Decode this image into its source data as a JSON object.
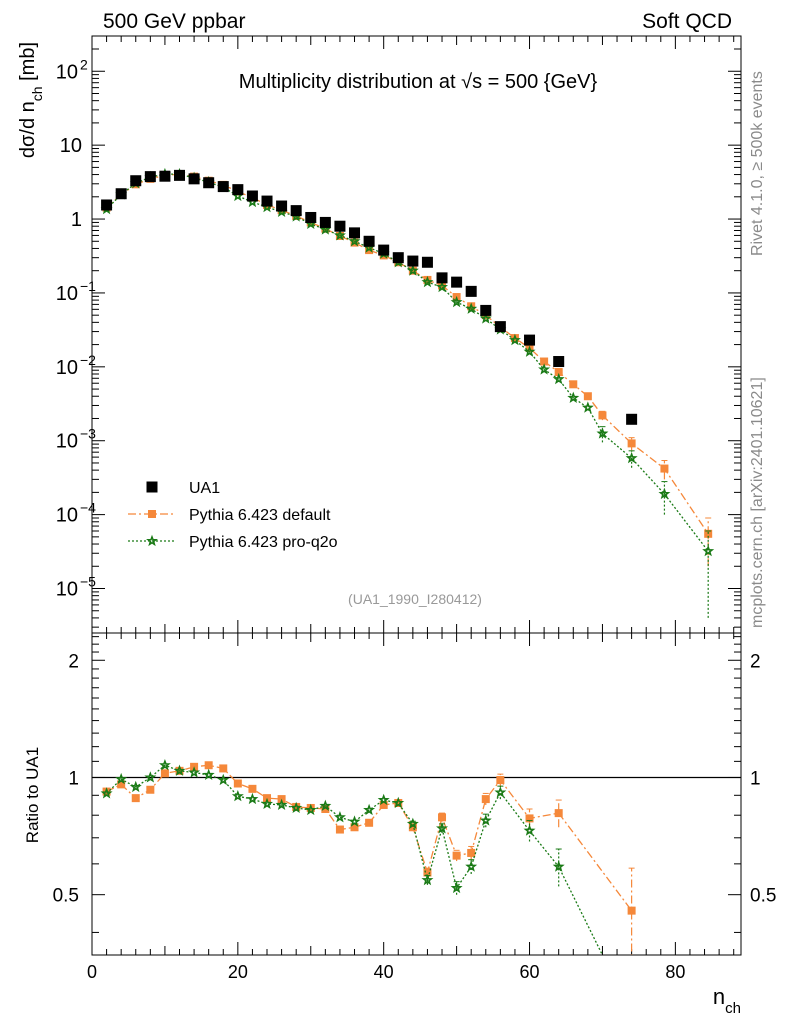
{
  "header": {
    "left": "500 GeV ppbar",
    "right": "Soft QCD"
  },
  "side_labels": {
    "rivet": "Rivet 4.1.0, ≥ 500k events",
    "mcplots": "mcplots.cern.ch [arXiv:2401.10621]"
  },
  "chart_data": {
    "type": "scatter",
    "title": "Multiplicity distribution at √s = 500 {GeV}",
    "xlabel": "n_ch",
    "ylabel": "dσ/d n_ch [mb]",
    "ratio_ylabel": "Ratio to UA1",
    "analysis_tag": "(UA1_1990_I280412)",
    "xlim": [
      0,
      89
    ],
    "ylim": [
      2.5e-06,
      300
    ],
    "ratio_ylim": [
      0.35,
      2.35
    ],
    "yscale": "log",
    "xticks": [
      "0",
      "20",
      "40",
      "60",
      "80"
    ],
    "yticks": [
      {
        "mant": "10",
        "exp": "−5",
        "value": 1e-05
      },
      {
        "mant": "10",
        "exp": "−4",
        "value": 0.0001
      },
      {
        "mant": "10",
        "exp": "−3",
        "value": 0.001
      },
      {
        "mant": "10",
        "exp": "−2",
        "value": 0.01
      },
      {
        "mant": "10",
        "exp": "−1",
        "value": 0.1
      },
      {
        "mant": "1",
        "exp": "",
        "value": 1
      },
      {
        "mant": "10",
        "exp": "",
        "value": 10
      },
      {
        "mant": "10",
        "exp": "2",
        "value": 100
      }
    ],
    "ratio_yticks": [
      "0.5",
      "1",
      "2"
    ],
    "legend": [
      {
        "name": "UA1",
        "color": "#000000",
        "marker": "square"
      },
      {
        "name": "Pythia 6.423 default",
        "color": "#f5883a",
        "marker": "square",
        "line": "dashdot"
      },
      {
        "name": "Pythia 6.423 pro-q2o",
        "color": "#1a7a16",
        "marker": "star",
        "line": "dotted"
      }
    ],
    "series": [
      {
        "name": "UA1",
        "x": [
          2,
          4,
          6,
          8,
          10,
          12,
          14,
          16,
          18,
          20,
          22,
          24,
          26,
          28,
          30,
          32,
          34,
          36,
          38,
          40,
          42,
          44,
          46,
          48,
          50,
          52,
          54,
          56,
          60,
          64,
          74
        ],
        "y": [
          1.55,
          2.2,
          3.3,
          3.75,
          3.8,
          3.9,
          3.5,
          3.1,
          2.75,
          2.5,
          2.05,
          1.75,
          1.5,
          1.3,
          1.05,
          0.9,
          0.8,
          0.65,
          0.5,
          0.38,
          0.3,
          0.27,
          0.26,
          0.16,
          0.14,
          0.105,
          0.058,
          0.035,
          0.023,
          0.0118,
          0.00195
        ]
      },
      {
        "name": "Pythia 6.423 default",
        "x": [
          2,
          4,
          6,
          8,
          10,
          12,
          14,
          16,
          18,
          20,
          22,
          24,
          26,
          28,
          30,
          32,
          34,
          36,
          38,
          40,
          42,
          44,
          46,
          48,
          50,
          52,
          54,
          56,
          58,
          60,
          62,
          64,
          66,
          68,
          70,
          74,
          78.5,
          84.5
        ],
        "y": [
          1.43,
          2.13,
          2.95,
          3.5,
          3.9,
          4.05,
          3.75,
          3.3,
          2.9,
          2.35,
          1.95,
          1.55,
          1.32,
          1.1,
          0.9,
          0.74,
          0.59,
          0.48,
          0.38,
          0.322,
          0.26,
          0.2,
          0.15,
          0.126,
          0.088,
          0.066,
          0.05,
          0.0345,
          0.0245,
          0.018,
          0.0118,
          0.0085,
          0.0058,
          0.004,
          0.0022,
          0.00092,
          0.00042,
          5.5e-05
        ],
        "yerr": [
          0,
          0,
          0,
          0,
          0,
          0,
          0,
          0,
          0,
          0,
          0,
          0,
          0,
          0,
          0,
          0,
          0,
          0,
          0,
          0,
          0,
          0,
          0,
          0,
          0,
          0,
          0,
          0,
          0,
          0,
          0,
          0,
          0,
          0,
          0.0003,
          0.00018,
          0.00012,
          3.5e-05
        ]
      },
      {
        "name": "Pythia 6.423 pro-q2o",
        "x": [
          2,
          4,
          6,
          8,
          10,
          12,
          14,
          16,
          18,
          20,
          22,
          24,
          26,
          28,
          30,
          32,
          34,
          36,
          38,
          40,
          42,
          44,
          46,
          48,
          50,
          52,
          54,
          56,
          58,
          60,
          62,
          64,
          66,
          68,
          70,
          74,
          78.5,
          84.5
        ],
        "y": [
          1.36,
          2.15,
          3.05,
          3.7,
          4.05,
          4.05,
          3.6,
          3.15,
          2.7,
          2.05,
          1.7,
          1.45,
          1.25,
          1.08,
          0.86,
          0.72,
          0.6,
          0.5,
          0.41,
          0.34,
          0.26,
          0.2,
          0.14,
          0.12,
          0.075,
          0.061,
          0.045,
          0.032,
          0.023,
          0.016,
          0.0092,
          0.0068,
          0.0038,
          0.0028,
          0.00125,
          0.00058,
          0.00019,
          3.2e-05
        ],
        "yerr": [
          0,
          0,
          0,
          0,
          0,
          0,
          0,
          0,
          0,
          0,
          0,
          0,
          0,
          0,
          0,
          0,
          0,
          0,
          0,
          0,
          0,
          0,
          0,
          0,
          0,
          0,
          0,
          0,
          0,
          0,
          0,
          0,
          0,
          0,
          0.0003,
          0.00015,
          9e-05,
          2.8e-05
        ]
      }
    ],
    "ratio_series": [
      {
        "name": "Pythia 6.423 default",
        "x": [
          2,
          4,
          6,
          8,
          10,
          12,
          14,
          16,
          18,
          20,
          22,
          24,
          26,
          28,
          30,
          32,
          34,
          36,
          38,
          40,
          42,
          44,
          46,
          48,
          50,
          52,
          54,
          56,
          60,
          64,
          74
        ],
        "y": [
          0.92,
          0.96,
          0.885,
          0.93,
          1.025,
          1.04,
          1.065,
          1.075,
          1.055,
          0.965,
          0.935,
          0.885,
          0.88,
          0.84,
          0.835,
          0.83,
          0.735,
          0.745,
          0.765,
          0.85,
          0.86,
          0.745,
          0.57,
          0.79,
          0.63,
          0.64,
          0.88,
          0.985,
          0.785,
          0.81,
          0.455
        ],
        "yerr": [
          0,
          0,
          0,
          0,
          0,
          0,
          0,
          0,
          0,
          0,
          0,
          0,
          0,
          0,
          0,
          0,
          0,
          0,
          0,
          0,
          0,
          0.012,
          0.015,
          0.02,
          0.02,
          0.025,
          0.03,
          0.035,
          0.045,
          0.065,
          0.13
        ]
      },
      {
        "name": "Pythia 6.423 pro-q2o",
        "x": [
          2,
          4,
          6,
          8,
          10,
          12,
          14,
          16,
          18,
          20,
          22,
          24,
          26,
          28,
          30,
          32,
          34,
          36,
          38,
          40,
          42,
          44,
          46,
          48,
          50,
          52,
          54,
          56,
          60,
          64,
          70.5
        ],
        "y": [
          0.91,
          0.99,
          0.945,
          1.0,
          1.075,
          1.04,
          1.03,
          1.015,
          0.985,
          0.895,
          0.88,
          0.855,
          0.85,
          0.835,
          0.825,
          0.845,
          0.79,
          0.77,
          0.825,
          0.875,
          0.86,
          0.76,
          0.545,
          0.74,
          0.52,
          0.59,
          0.775,
          0.915,
          0.73,
          0.59,
          0.335
        ],
        "yerr": [
          0,
          0,
          0,
          0,
          0,
          0,
          0,
          0,
          0,
          0,
          0,
          0,
          0,
          0,
          0,
          0,
          0,
          0,
          0,
          0,
          0,
          0.012,
          0.015,
          0.02,
          0.02,
          0.025,
          0.03,
          0.035,
          0.045,
          0.065,
          0
        ]
      }
    ]
  }
}
